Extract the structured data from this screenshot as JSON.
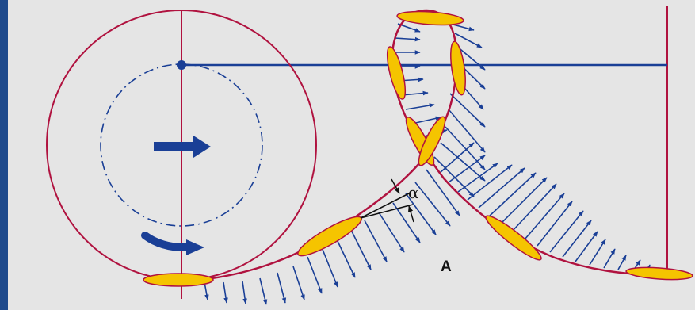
{
  "labels": {
    "point_a": "A",
    "angle": "α"
  },
  "colors": {
    "background": "#e5e5e5",
    "sidebar": "#1e4a8c",
    "trajectory": "#b0123f",
    "blade_fill": "#f5c400",
    "blade_outline": "#b0123f",
    "vectors": "#1a3f96",
    "reference_line": "#1a3f96",
    "text": "#111111"
  },
  "icons": {
    "forward_motion": "arrow-right-icon",
    "rotation": "curved-arrow-icon"
  }
}
